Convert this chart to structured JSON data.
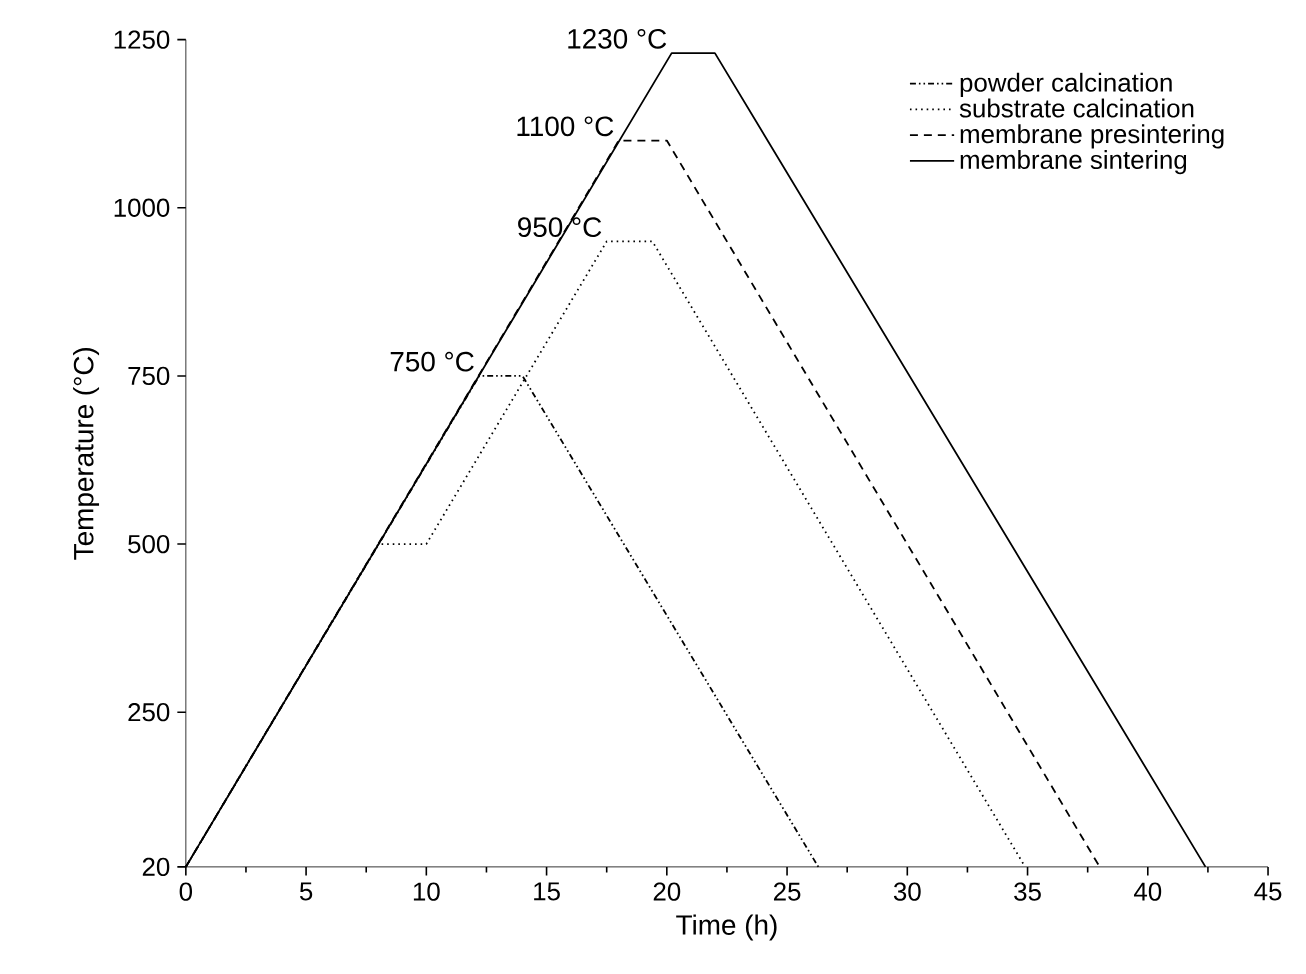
{
  "chart_data": {
    "type": "line",
    "xlabel": "Time (h)",
    "ylabel": "Temperature (°C)",
    "xlim": [
      0,
      45
    ],
    "ylim": [
      20,
      1250
    ],
    "xticks": [
      0,
      5,
      10,
      15,
      20,
      25,
      30,
      35,
      40,
      45
    ],
    "yticks": [
      20,
      250,
      500,
      750,
      1000,
      1250
    ],
    "grid": false,
    "legend": "top right",
    "marker": "none",
    "series": [
      {
        "name": "powder calcination",
        "color": "#000000",
        "line_style": "dashdotted",
        "x": [
          0,
          12.2,
          14,
          26.3
        ],
        "values": [
          20,
          750,
          750,
          20
        ]
      },
      {
        "name": "substrate calcination",
        "color": "#000000",
        "line_style": "dotted",
        "x": [
          0,
          8,
          10,
          17.5,
          19.4,
          34.9
        ],
        "values": [
          20,
          500,
          500,
          950,
          950,
          20
        ]
      },
      {
        "name": "membrane presintering",
        "color": "#000000",
        "line_style": "dashed",
        "x": [
          0,
          18.0,
          20.0,
          38.0
        ],
        "values": [
          20,
          1100,
          1100,
          20
        ]
      },
      {
        "name": "membrane sintering",
        "color": "#000000",
        "line_style": "solid",
        "x": [
          0,
          20.2,
          22.0,
          42.4
        ],
        "values": [
          20,
          1230,
          1230,
          20
        ]
      }
    ],
    "annotations": [
      {
        "text": "1230 °C",
        "x": 20.2,
        "y": 1230
      },
      {
        "text": "1100 °C",
        "x": 18.0,
        "y": 1100
      },
      {
        "text": "950 °C",
        "x": 17.5,
        "y": 950
      },
      {
        "text": "750 °C",
        "x": 12.2,
        "y": 750
      }
    ]
  }
}
